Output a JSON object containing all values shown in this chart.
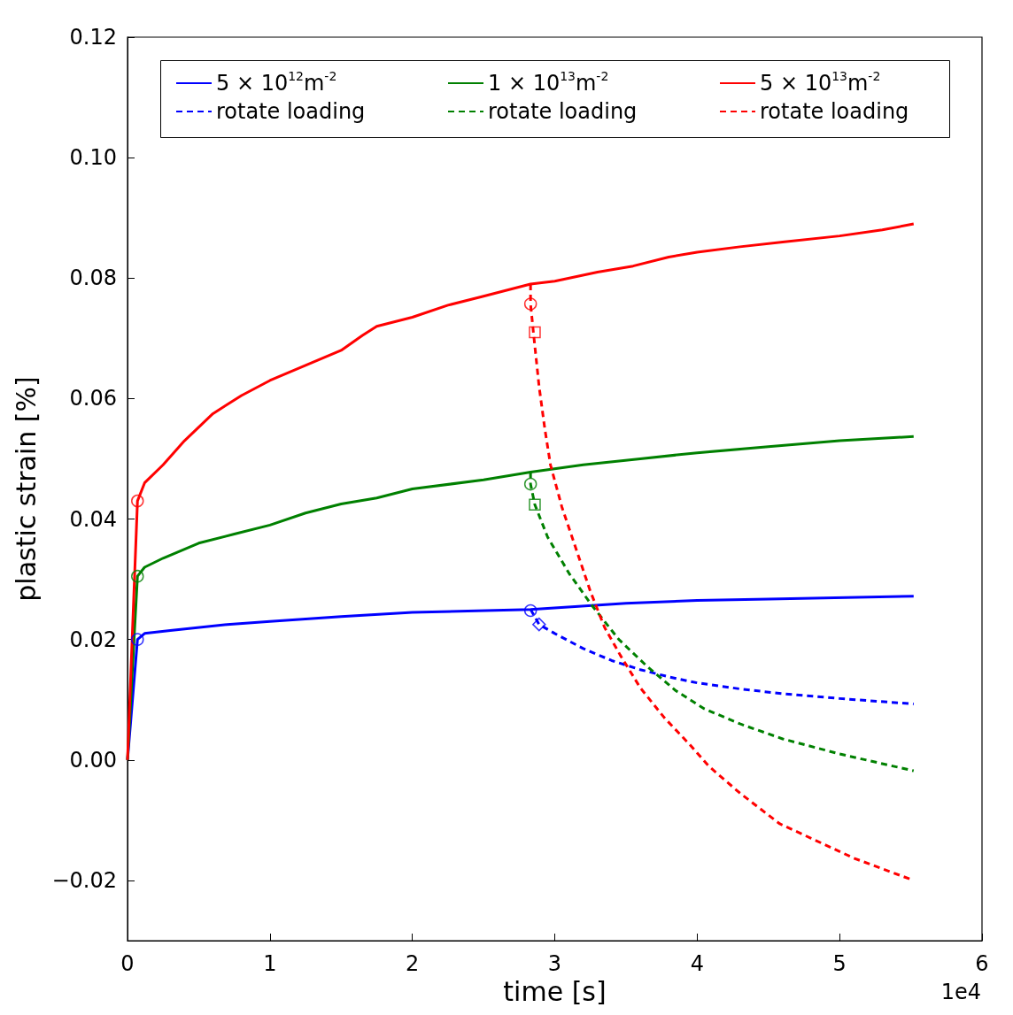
{
  "chart_data": {
    "type": "line",
    "xlabel": "time [s]",
    "ylabel": "plastic strain [%]",
    "annotations": [
      "1e4"
    ],
    "xlim": [
      0,
      6
    ],
    "ylim": [
      -0.03,
      0.12
    ],
    "xticks": [
      0,
      1,
      2,
      3,
      4,
      5,
      6
    ],
    "yticks": [
      {
        "value": -0.02,
        "label": "−0.02"
      },
      {
        "value": 0,
        "label": "0.00"
      },
      {
        "value": 0.02,
        "label": "0.02"
      },
      {
        "value": 0.04,
        "label": "0.04"
      },
      {
        "value": 0.06,
        "label": "0.06"
      },
      {
        "value": 0.08,
        "label": "0.08"
      },
      {
        "value": 0.1,
        "label": "0.10"
      },
      {
        "value": 0.12,
        "label": "0.12"
      }
    ],
    "grid": false,
    "legend": "top",
    "marker": "none",
    "series": [
      {
        "name": "5 × 10$^{12}$m$^{-2}$",
        "color": "#0000ff",
        "line_style": "solid",
        "x": [
          0,
          0.07,
          0.12,
          0.3,
          0.7,
          1.0,
          1.5,
          2.0,
          2.83,
          3.5,
          4.0,
          4.5,
          5.52
        ],
        "values": [
          0,
          0.02,
          0.021,
          0.0215,
          0.0225,
          0.023,
          0.0238,
          0.0245,
          0.025,
          0.026,
          0.0265,
          0.0267,
          0.0272
        ]
      },
      {
        "name": "1 × 10$^{13}$m$^{-2}$",
        "color": "#008000",
        "line_style": "solid",
        "x": [
          0,
          0.07,
          0.12,
          0.25,
          0.5,
          0.75,
          1.0,
          1.25,
          1.5,
          1.75,
          2.0,
          2.5,
          2.83,
          3.2,
          3.6,
          4.0,
          4.5,
          5.0,
          5.52
        ],
        "values": [
          0,
          0.0305,
          0.032,
          0.0335,
          0.036,
          0.0375,
          0.039,
          0.041,
          0.0425,
          0.0435,
          0.045,
          0.0465,
          0.0478,
          0.049,
          0.05,
          0.051,
          0.052,
          0.053,
          0.0537
        ]
      },
      {
        "name": "5 × 10$^{13}$m$^{-2}$",
        "color": "#ff0000",
        "line_style": "solid",
        "x": [
          0,
          0.07,
          0.12,
          0.25,
          0.4,
          0.6,
          0.8,
          1.0,
          1.25,
          1.5,
          1.65,
          1.75,
          2.0,
          2.25,
          2.5,
          2.83,
          3.0,
          3.3,
          3.55,
          3.8,
          4.0,
          4.3,
          4.6,
          5.0,
          5.3,
          5.52
        ],
        "values": [
          0,
          0.043,
          0.046,
          0.049,
          0.053,
          0.0575,
          0.0605,
          0.063,
          0.0655,
          0.068,
          0.0705,
          0.072,
          0.0735,
          0.0755,
          0.077,
          0.079,
          0.0795,
          0.081,
          0.082,
          0.0835,
          0.0843,
          0.0852,
          0.086,
          0.087,
          0.088,
          0.089
        ]
      },
      {
        "name": "rotate loading",
        "color": "#0000ff",
        "line_style": "dashed",
        "x": [
          2.83,
          2.89,
          3.0,
          3.2,
          3.4,
          3.6,
          3.8,
          4.0,
          4.3,
          4.6,
          5.0,
          5.52
        ],
        "values": [
          0.025,
          0.0225,
          0.021,
          0.0185,
          0.0165,
          0.015,
          0.0138,
          0.0128,
          0.0118,
          0.011,
          0.0102,
          0.0093
        ]
      },
      {
        "name": "rotate loading",
        "color": "#008000",
        "line_style": "dashed",
        "x": [
          2.83,
          2.83,
          2.86,
          2.95,
          3.1,
          3.25,
          3.45,
          3.65,
          3.85,
          4.05,
          4.3,
          4.6,
          5.0,
          5.52
        ],
        "values": [
          0.0478,
          0.0458,
          0.0424,
          0.037,
          0.031,
          0.026,
          0.02,
          0.0155,
          0.0115,
          0.0085,
          0.006,
          0.0035,
          0.001,
          -0.0018
        ]
      },
      {
        "name": "rotate loading",
        "color": "#ff0000",
        "line_style": "dashed",
        "x": [
          2.83,
          2.83,
          2.85,
          2.89,
          2.93,
          2.97,
          3.05,
          3.15,
          3.25,
          3.35,
          3.46,
          3.6,
          3.77,
          3.95,
          4.08,
          4.3,
          4.58,
          4.8,
          5.1,
          5.52
        ],
        "values": [
          0.079,
          0.0757,
          0.071,
          0.062,
          0.055,
          0.049,
          0.042,
          0.035,
          0.028,
          0.022,
          0.0174,
          0.012,
          0.007,
          0.0025,
          -0.001,
          -0.0055,
          -0.0106,
          -0.013,
          -0.0163,
          -0.02
        ]
      },
      {
        "type": "scatter",
        "marker": "circle",
        "color": "#0000ff",
        "x": [
          0.07,
          2.83
        ],
        "values": [
          0.02,
          0.0248
        ]
      },
      {
        "type": "scatter",
        "marker": "circle",
        "color": "#008000",
        "x": [
          0.07,
          2.83
        ],
        "values": [
          0.0305,
          0.0458
        ]
      },
      {
        "type": "scatter",
        "marker": "circle",
        "color": "#ff0000",
        "x": [
          0.07,
          2.83
        ],
        "values": [
          0.043,
          0.0757
        ]
      },
      {
        "type": "scatter",
        "marker": "diamond",
        "color": "#0000ff",
        "x": [
          2.89
        ],
        "values": [
          0.0225
        ]
      },
      {
        "type": "scatter",
        "marker": "square",
        "color": "#008000",
        "x": [
          2.86
        ],
        "values": [
          0.0424
        ]
      },
      {
        "type": "scatter",
        "marker": "square",
        "color": "#ff0000",
        "x": [
          2.86
        ],
        "values": [
          0.071
        ]
      }
    ]
  }
}
